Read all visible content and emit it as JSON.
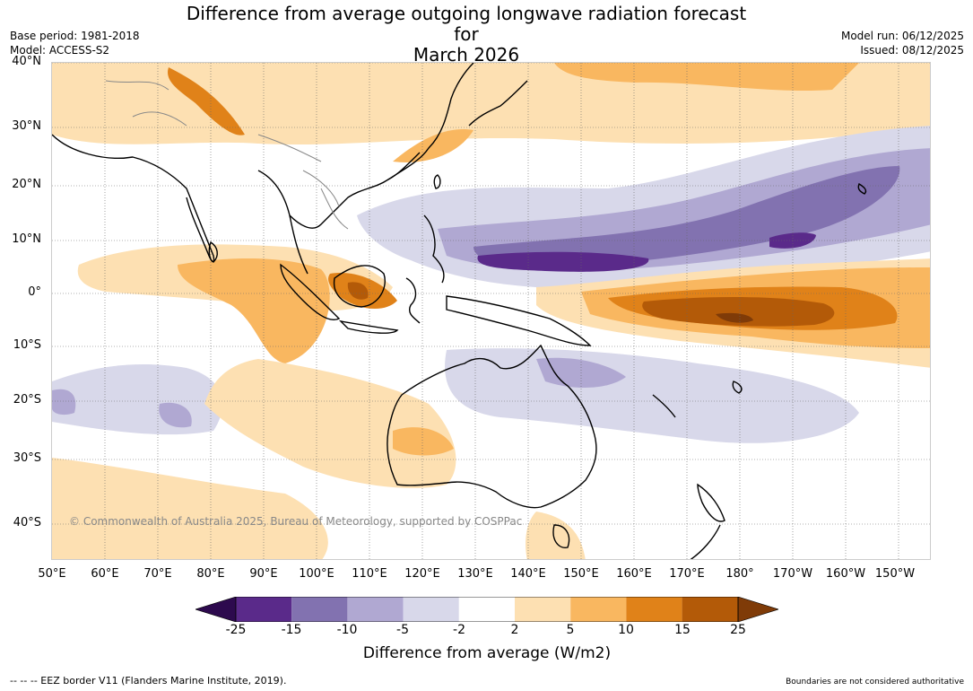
{
  "title_line1": "Difference from average outgoing longwave radiation forecast for",
  "title_line2": "March 2026",
  "base_period": "Base period: 1981-2018",
  "model": "Model: ACCESS-S2",
  "model_run": "Model run: 06/12/2025",
  "issued": "Issued: 08/12/2025",
  "lat_labels": [
    "40°N",
    "30°N",
    "20°N",
    "10°N",
    "0°",
    "10°S",
    "20°S",
    "30°S",
    "40°S"
  ],
  "lon_labels": [
    "50°E",
    "60°E",
    "70°E",
    "80°E",
    "90°E",
    "100°E",
    "110°E",
    "120°E",
    "130°E",
    "140°E",
    "150°E",
    "160°E",
    "170°E",
    "180°",
    "170°W",
    "160°W",
    "150°W"
  ],
  "copyright": "© Commonwealth of Australia 2025, Bureau of Meteorology, supported by COSPPac",
  "colorbar": {
    "ticks": [
      "-25",
      "-15",
      "-10",
      "-5",
      "-2",
      "2",
      "5",
      "10",
      "15",
      "25"
    ],
    "colors": [
      "#5a2a8a",
      "#8272b0",
      "#b0a8d2",
      "#d8d8ea",
      "#ffffff",
      "#fde0b2",
      "#f9b760",
      "#e08219",
      "#b35a08"
    ],
    "under_color": "#2d0a4e",
    "over_color": "#7f3b08",
    "title": "Difference from average (W/m2)"
  },
  "footer_left": "--  --  -- EEZ border V11 (Flanders Marine Institute, 2019).",
  "footer_right": "Boundaries are not considered authoritative"
}
